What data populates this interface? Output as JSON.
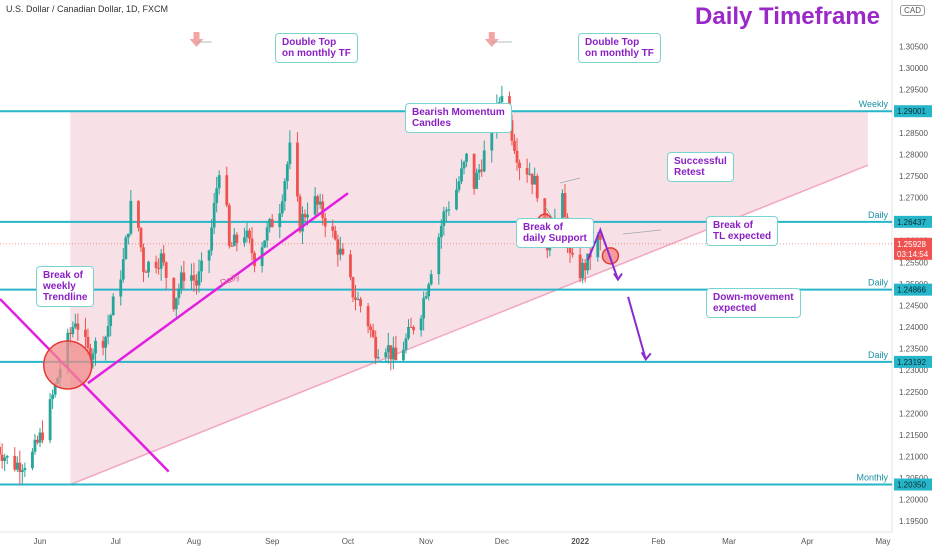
{
  "symbol_title": "U.S. Dollar / Canadian Dollar, 1D, FXCM",
  "headline": "Daily Timeframe",
  "currency_badge": "CAD",
  "colors": {
    "up": "#26a69a",
    "down": "#ef5350",
    "level": "#26b6c9",
    "channel": "#f3c6d4",
    "trendline": "#e21fe0",
    "annotation": "#9b28c9"
  },
  "chart_data": {
    "type": "candlestick",
    "title": "U.S. Dollar / Canadian Dollar, 1D, FXCM",
    "ylim": [
      1.1925,
      1.313
    ],
    "yticks": [
      "1.19500",
      "1.20000",
      "1.20500",
      "1.21000",
      "1.21500",
      "1.22000",
      "1.22500",
      "1.23000",
      "1.23500",
      "1.24000",
      "1.24500",
      "1.25000",
      "1.25500",
      "1.26000",
      "1.26500",
      "1.27000",
      "1.27500",
      "1.28000",
      "1.28500",
      "1.29000",
      "1.29500",
      "1.30000",
      "1.30500"
    ],
    "xticks": [
      {
        "label": "Jun",
        "day": 31
      },
      {
        "label": "Jul",
        "day": 61
      },
      {
        "label": "Aug",
        "day": 92
      },
      {
        "label": "Sep",
        "day": 123
      },
      {
        "label": "Oct",
        "day": 153
      },
      {
        "label": "Nov",
        "day": 184
      },
      {
        "label": "Dec",
        "day": 214
      },
      {
        "label": "2022",
        "day": 245
      },
      {
        "label": "Feb",
        "day": 276
      },
      {
        "label": "Mar",
        "day": 304
      },
      {
        "label": "Apr",
        "day": 335
      },
      {
        "label": "May",
        "day": 365
      }
    ],
    "price_path": [
      [
        13,
        1.213
      ],
      [
        20,
        1.208
      ],
      [
        27,
        1.209
      ],
      [
        33,
        1.217
      ],
      [
        40,
        1.233
      ],
      [
        45,
        1.242
      ],
      [
        50,
        1.234
      ],
      [
        57,
        1.238
      ],
      [
        64,
        1.255
      ],
      [
        68,
        1.272
      ],
      [
        72,
        1.254
      ],
      [
        79,
        1.256
      ],
      [
        84,
        1.246
      ],
      [
        89,
        1.254
      ],
      [
        93,
        1.25
      ],
      [
        98,
        1.258
      ],
      [
        103,
        1.282
      ],
      [
        106,
        1.258
      ],
      [
        112,
        1.262
      ],
      [
        116,
        1.256
      ],
      [
        121,
        1.262
      ],
      [
        126,
        1.268
      ],
      [
        130,
        1.281
      ],
      [
        134,
        1.264
      ],
      [
        139,
        1.27
      ],
      [
        145,
        1.264
      ],
      [
        150,
        1.257
      ],
      [
        155,
        1.248
      ],
      [
        160,
        1.243
      ],
      [
        164,
        1.235
      ],
      [
        168,
        1.236
      ],
      [
        172,
        1.232
      ],
      [
        177,
        1.238
      ],
      [
        182,
        1.244
      ],
      [
        186,
        1.254
      ],
      [
        191,
        1.266
      ],
      [
        196,
        1.272
      ],
      [
        200,
        1.279
      ],
      [
        203,
        1.273
      ],
      [
        207,
        1.28
      ],
      [
        210,
        1.285
      ],
      [
        214,
        1.295
      ],
      [
        218,
        1.285
      ],
      [
        221,
        1.278
      ],
      [
        225,
        1.276
      ],
      [
        228,
        1.272
      ],
      [
        230,
        1.266
      ],
      [
        232,
        1.259
      ],
      [
        235,
        1.265
      ],
      [
        238,
        1.269
      ],
      [
        241,
        1.256
      ],
      [
        244,
        1.252
      ],
      [
        248,
        1.255
      ],
      [
        251,
        1.261
      ],
      [
        253,
        1.2593
      ]
    ],
    "levels": [
      {
        "label": "Weekly",
        "price": 1.29001,
        "tag": "1.29001"
      },
      {
        "label": "Daily",
        "price": 1.26437,
        "tag": "1.26437"
      },
      {
        "label": "Daily",
        "price": 1.24866,
        "tag": "1.24866"
      },
      {
        "label": "Daily",
        "price": 1.23192,
        "tag": "1.23192"
      },
      {
        "label": "Monthly",
        "price": 1.2035,
        "tag": "1.20350"
      }
    ],
    "current_price": {
      "price": 1.25928,
      "tag": "1.25928",
      "countdown": "03:14:54"
    },
    "trendline_label": "Daily",
    "annotations": {
      "double_top_1": [
        "Double Top",
        "on monthly TF"
      ],
      "double_top_2": [
        "Double Top",
        "on monthly TF"
      ],
      "bearish": [
        "Bearish Momentum",
        "Candles"
      ],
      "successful": [
        "Successful",
        "Retest"
      ],
      "break_support": [
        "Break of",
        "daily Support"
      ],
      "break_tl": [
        "Break of",
        "TL expected"
      ],
      "down_move": [
        "Down-movement",
        "expected"
      ],
      "break_weekly": [
        "Break of",
        "weekly",
        "Trendline"
      ]
    }
  }
}
